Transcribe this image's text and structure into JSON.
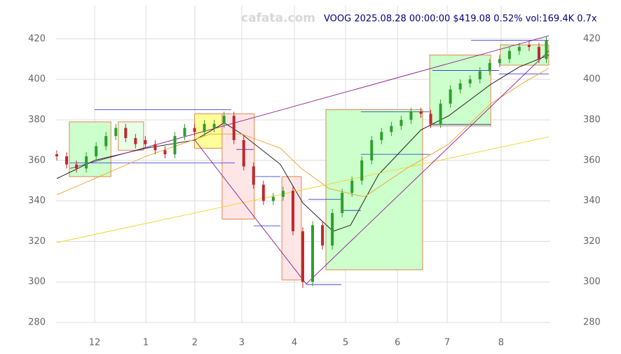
{
  "chart_data": {
    "type": "candlestick",
    "title": "VOOG 2025.08.28 00:00:00 $419.08 0.52% vol:169.4K 0.7x",
    "watermark": "cafata.com",
    "x": [
      0,
      4,
      8,
      12,
      16,
      20,
      24,
      28,
      32,
      36,
      40,
      44,
      48,
      52,
      56,
      60,
      64,
      68,
      72,
      76,
      80,
      84,
      88,
      92,
      96,
      100,
      104,
      108,
      112,
      116,
      120,
      124,
      128,
      132,
      136,
      140,
      144,
      148,
      152,
      156,
      160,
      164,
      168,
      172,
      176,
      180,
      184,
      188,
      192,
      196,
      199
    ],
    "open": [
      363,
      362,
      358,
      356,
      362,
      367,
      372,
      376,
      371,
      370,
      368,
      365,
      363,
      372,
      376,
      374,
      376,
      378,
      382,
      370,
      357,
      348,
      340,
      342,
      345,
      325,
      300,
      328,
      318,
      334,
      344,
      350,
      360,
      370,
      374,
      377,
      380,
      384,
      383,
      378,
      388,
      395,
      398,
      400,
      404,
      408,
      410,
      414,
      417,
      416,
      410
    ],
    "high": [
      365,
      364,
      360,
      364,
      369,
      374,
      378,
      378,
      373,
      372,
      370,
      367,
      374,
      378,
      378,
      380,
      380,
      384,
      384,
      372,
      359,
      350,
      344,
      347,
      347,
      327,
      330,
      330,
      336,
      346,
      352,
      362,
      372,
      376,
      379,
      382,
      386,
      386,
      385,
      390,
      397,
      400,
      402,
      406,
      410,
      412,
      416,
      418,
      419,
      418,
      421
    ],
    "low": [
      360,
      356,
      354,
      354,
      360,
      365,
      370,
      369,
      366,
      366,
      363,
      361,
      361,
      370,
      372,
      372,
      374,
      376,
      368,
      355,
      346,
      338,
      338,
      340,
      323,
      297,
      298,
      316,
      316,
      332,
      342,
      348,
      358,
      368,
      372,
      375,
      378,
      381,
      376,
      376,
      386,
      393,
      396,
      398,
      402,
      406,
      408,
      412,
      414,
      408,
      408
    ],
    "close": [
      362,
      358,
      356,
      362,
      367,
      372,
      376,
      371,
      368,
      368,
      365,
      363,
      372,
      376,
      374,
      378,
      378,
      382,
      370,
      357,
      348,
      340,
      342,
      345,
      325,
      300,
      328,
      318,
      334,
      344,
      350,
      360,
      370,
      374,
      377,
      380,
      384,
      383,
      378,
      388,
      395,
      398,
      400,
      404,
      408,
      410,
      414,
      416,
      416,
      410,
      419.08
    ],
    "up_color": "#2e9e2e",
    "down_color": "#c0282d",
    "xlim": [
      0,
      200
    ],
    "xticks": [
      {
        "value": 15.4,
        "label": "12"
      },
      {
        "value": 36.2,
        "label": "1"
      },
      {
        "value": 56.1,
        "label": "2"
      },
      {
        "value": 75.2,
        "label": "3"
      },
      {
        "value": 96.6,
        "label": "4"
      },
      {
        "value": 117.4,
        "label": "5"
      },
      {
        "value": 138.5,
        "label": "6"
      },
      {
        "value": 158.7,
        "label": "7"
      },
      {
        "value": 180.6,
        "label": "8"
      }
    ],
    "ylim": [
      280,
      435
    ],
    "yticks": [
      280,
      300,
      320,
      340,
      360,
      380,
      400,
      420
    ],
    "grid": true,
    "zones": [
      {
        "x": [
          5.1,
          22
        ],
        "y": [
          352,
          379
        ],
        "fill": "#ccffcc"
      },
      {
        "x": [
          25,
          35.3
        ],
        "y": [
          365,
          379
        ],
        "fill": "#e6ffe6"
      },
      {
        "x": [
          56,
          67.3
        ],
        "y": [
          366,
          383
        ],
        "fill": "#ffff99"
      },
      {
        "x": [
          67.2,
          80.3
        ],
        "y": [
          331,
          383
        ],
        "fill": "#ffe6e6"
      },
      {
        "x": [
          91.5,
          99.4
        ],
        "y": [
          301,
          352
        ],
        "fill": "#ffe6e6"
      },
      {
        "x": [
          109.4,
          148.7
        ],
        "y": [
          306,
          385
        ],
        "fill": "#ccffcc"
      },
      {
        "x": [
          151.6,
          176.4
        ],
        "y": [
          377,
          412
        ],
        "fill": "#ccffcc"
      },
      {
        "x": [
          180.3,
          200
        ],
        "y": [
          407,
          417
        ],
        "fill": "#ccffcc"
      }
    ],
    "zone_stroke": "#e08850",
    "overlays": [
      {
        "color": "#111111",
        "x": [
          0,
          15.4,
          36.2,
          56.1,
          68.1,
          75.2,
          90.9,
          100,
          112.3,
          119.4,
          130.8,
          148,
          159.3,
          176.4,
          187.8,
          200
        ],
        "values": [
          351,
          360,
          366,
          370,
          378.5,
          373,
          358,
          339,
          325,
          328,
          353,
          375,
          382,
          397.5,
          406,
          412
        ]
      },
      {
        "color": "#f0a020",
        "x": [
          0,
          15.4,
          36.2,
          62.4,
          75.2,
          90.9,
          99.4,
          110.8,
          125.1,
          142.2,
          159.3,
          176.4,
          190.6,
          200
        ],
        "values": [
          343,
          351,
          362,
          373,
          373,
          366,
          356,
          346,
          342,
          356,
          368,
          388,
          399,
          405.5
        ]
      },
      {
        "color": "#f5d020",
        "x": [
          0,
          200
        ],
        "values": [
          319.4,
          371.6
        ]
      },
      {
        "color": "#8b1a8b",
        "x": [
          5.4,
          200
        ],
        "values": [
          356,
          421.5
        ]
      },
      {
        "color": "#8b1a8b",
        "x": [
          56.1,
          101.4
        ],
        "values": [
          370,
          299
        ]
      },
      {
        "color": "#8b1a8b",
        "x": [
          101.4,
          200
        ],
        "values": [
          299,
          414
        ]
      }
    ],
    "level_color": "#1f2fd0",
    "levels": [
      {
        "x": [
          15.4,
          70.9
        ],
        "value": 385
      },
      {
        "x": [
          5.4,
          72.4
        ],
        "value": 358.8
      },
      {
        "x": [
          73,
          80
        ],
        "value": 365.4
      },
      {
        "x": [
          80,
          90.9
        ],
        "value": 352
      },
      {
        "x": [
          80,
          90.9
        ],
        "value": 327.7
      },
      {
        "x": [
          102.3,
          115.7
        ],
        "value": 340.8
      },
      {
        "x": [
          101.4,
          115.7
        ],
        "value": 298.7
      },
      {
        "x": [
          115.7,
          123.6
        ],
        "value": 335.3
      },
      {
        "x": [
          123.6,
          151.6
        ],
        "value": 384
      },
      {
        "x": [
          123.6,
          151.6
        ],
        "value": 363
      },
      {
        "x": [
          152.7,
          179.8
        ],
        "value": 404.4
      },
      {
        "x": [
          152.7,
          176.4
        ],
        "value": 377.8
      },
      {
        "x": [
          168.4,
          200
        ],
        "value": 419.3
      },
      {
        "x": [
          179.8,
          200
        ],
        "value": 402.7
      }
    ]
  }
}
